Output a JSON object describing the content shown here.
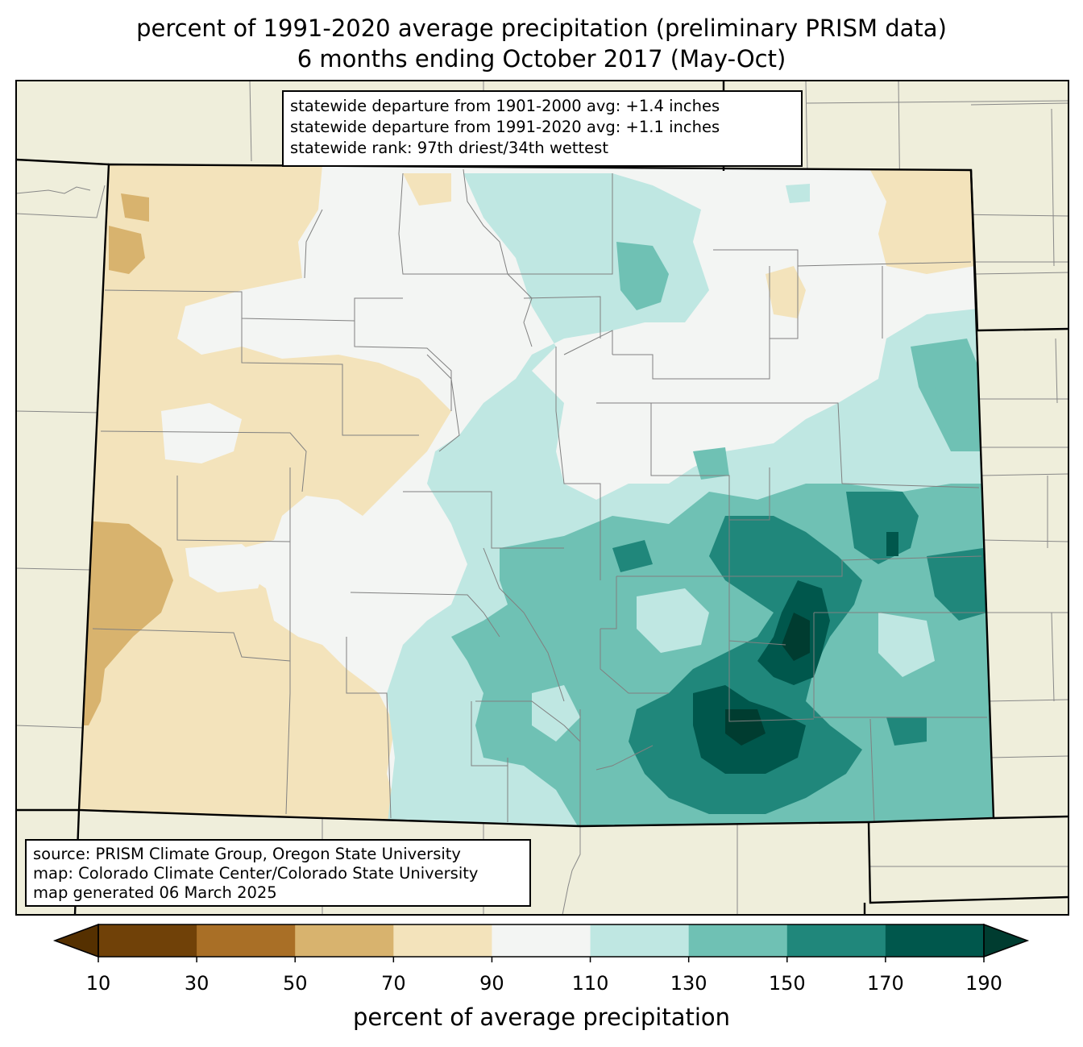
{
  "title": {
    "line1": "percent of 1991-2020 average precipitation (preliminary PRISM data)",
    "line2": "6 months ending October 2017 (May-Oct)"
  },
  "stats": [
    "statewide departure from 1901-2000 avg: +1.4 inches",
    "statewide departure from 1991-2020 avg: +1.1 inches",
    "statewide rank: 97th driest/34th wettest"
  ],
  "source": [
    "source: PRISM Climate Group, Oregon State University",
    "map: Colorado Climate Center/Colorado State University",
    "map generated 06 March 2025"
  ],
  "colorbar": {
    "label": "percent of average precipitation",
    "ticks": [
      "10",
      "30",
      "50",
      "70",
      "90",
      "110",
      "130",
      "150",
      "170",
      "190"
    ],
    "bins": [
      {
        "range": "10-30",
        "color": "#704108"
      },
      {
        "range": "30-50",
        "color": "#a96f26"
      },
      {
        "range": "50-70",
        "color": "#d8b36e"
      },
      {
        "range": "70-90",
        "color": "#f3e3bb"
      },
      {
        "range": "90-110",
        "color": "#f3f5f3"
      },
      {
        "range": "110-130",
        "color": "#bfe7e2"
      },
      {
        "range": "130-150",
        "color": "#6fc1b4"
      },
      {
        "range": "150-170",
        "color": "#20877b"
      },
      {
        "range": "170-190",
        "color": "#00574c"
      }
    ],
    "under_color": "#553000",
    "over_color": "#003c30"
  },
  "colors": {
    "background_land": "#efeedb",
    "state_border": "#000000",
    "county_border": "#808080"
  }
}
